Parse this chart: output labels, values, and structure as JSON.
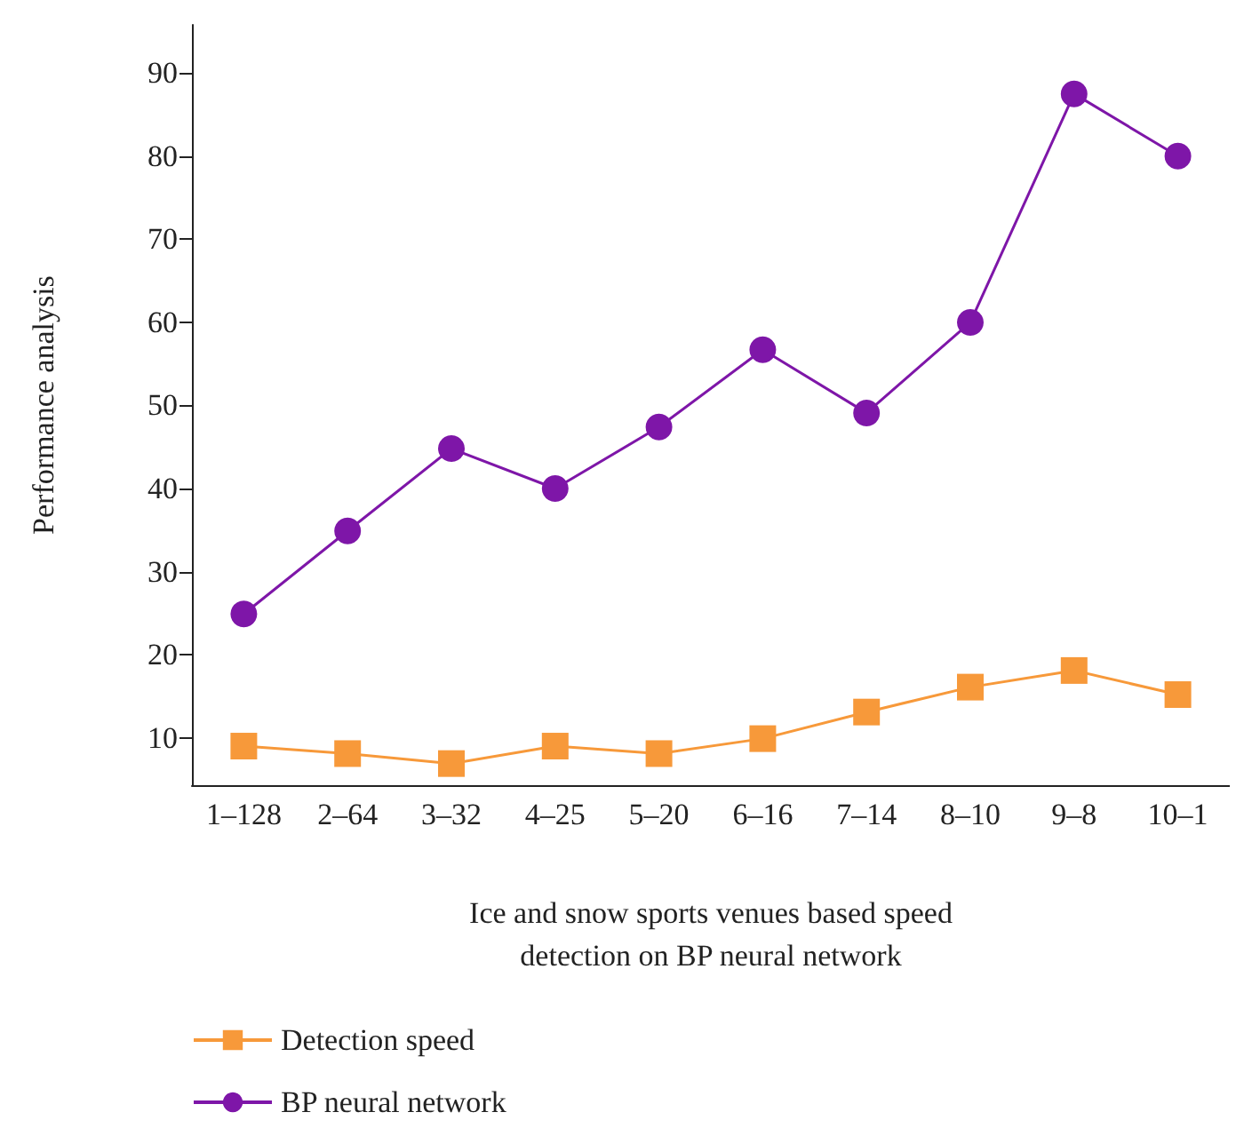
{
  "chart_data": {
    "type": "line",
    "xlabel": "Ice and snow sports venues based speed\ndetection on BP neural network",
    "ylabel": "Performance analysis",
    "categories": [
      "1–128",
      "2–64",
      "3–32",
      "4–25",
      "5–20",
      "6–16",
      "7–14",
      "8–10",
      "9–8",
      "10–1"
    ],
    "series": [
      {
        "name": "Detection speed",
        "color": "#f7993a",
        "marker": "square",
        "values": [
          9,
          8.1,
          6.9,
          9,
          8.1,
          9.9,
          13.1,
          16.1,
          18.1,
          15.2
        ]
      },
      {
        "name": "BP neural network",
        "color": "#7e16a8",
        "marker": "circle",
        "values": [
          24.9,
          34.9,
          44.8,
          40,
          47.4,
          56.7,
          49.1,
          60,
          87.5,
          80
        ]
      }
    ],
    "ylim": [
      4.3,
      95.8
    ],
    "yticks": [
      10,
      20,
      30,
      40,
      50,
      60,
      70,
      80,
      90
    ],
    "grid": false,
    "legend": "bottom left"
  }
}
